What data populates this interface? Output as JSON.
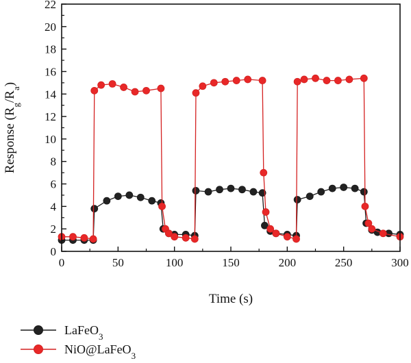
{
  "chart_data": {
    "type": "line",
    "xlabel": "Time (s)",
    "ylabel": {
      "main": "Response (R",
      "sub1": "g",
      "mid": "/R",
      "sub2": "a",
      "end": ")"
    },
    "xlim": [
      0,
      300
    ],
    "ylim": [
      0,
      22
    ],
    "x_ticks": [
      "0",
      "50",
      "100",
      "150",
      "200",
      "250",
      "300"
    ],
    "y_ticks": [
      "0",
      "2",
      "4",
      "6",
      "8",
      "10",
      "12",
      "14",
      "16",
      "18",
      "20",
      "22"
    ],
    "x_tick_values": [
      0,
      50,
      100,
      150,
      200,
      250,
      300
    ],
    "y_tick_values": [
      0,
      2,
      4,
      6,
      8,
      10,
      12,
      14,
      16,
      18,
      20,
      22
    ],
    "grid": false,
    "legend_position": "bottom-left",
    "series": [
      {
        "name": {
          "main": "LaFeO",
          "sub": "3"
        },
        "color": "#1a1a1a",
        "marker_fill": "#222222",
        "points": [
          [
            0,
            1.0
          ],
          [
            10,
            1.0
          ],
          [
            20,
            1.0
          ],
          [
            28,
            1.0
          ],
          [
            29,
            3.8
          ],
          [
            40,
            4.5
          ],
          [
            50,
            4.9
          ],
          [
            60,
            5.0
          ],
          [
            70,
            4.8
          ],
          [
            80,
            4.5
          ],
          [
            88,
            4.3
          ],
          [
            90,
            2.0
          ],
          [
            95,
            1.6
          ],
          [
            100,
            1.5
          ],
          [
            110,
            1.5
          ],
          [
            118,
            1.4
          ],
          [
            119,
            5.4
          ],
          [
            130,
            5.3
          ],
          [
            140,
            5.5
          ],
          [
            150,
            5.6
          ],
          [
            160,
            5.5
          ],
          [
            170,
            5.3
          ],
          [
            178,
            5.2
          ],
          [
            180,
            2.3
          ],
          [
            185,
            1.8
          ],
          [
            190,
            1.6
          ],
          [
            200,
            1.5
          ],
          [
            208,
            1.4
          ],
          [
            209,
            4.6
          ],
          [
            220,
            4.9
          ],
          [
            230,
            5.3
          ],
          [
            240,
            5.6
          ],
          [
            250,
            5.7
          ],
          [
            260,
            5.6
          ],
          [
            268,
            5.3
          ],
          [
            270,
            2.5
          ],
          [
            275,
            1.9
          ],
          [
            280,
            1.7
          ],
          [
            290,
            1.6
          ],
          [
            300,
            1.5
          ]
        ]
      },
      {
        "name": {
          "main": "NiO@LaFeO",
          "sub": "3"
        },
        "color": "#d42020",
        "marker_fill": "#e82828",
        "points": [
          [
            0,
            1.3
          ],
          [
            10,
            1.3
          ],
          [
            20,
            1.2
          ],
          [
            28,
            1.1
          ],
          [
            29,
            14.3
          ],
          [
            35,
            14.8
          ],
          [
            45,
            14.9
          ],
          [
            55,
            14.6
          ],
          [
            65,
            14.2
          ],
          [
            75,
            14.3
          ],
          [
            88,
            14.5
          ],
          [
            89,
            4.0
          ],
          [
            92,
            2.0
          ],
          [
            95,
            1.6
          ],
          [
            100,
            1.3
          ],
          [
            110,
            1.2
          ],
          [
            118,
            1.1
          ],
          [
            119,
            14.1
          ],
          [
            125,
            14.7
          ],
          [
            135,
            15.0
          ],
          [
            145,
            15.1
          ],
          [
            155,
            15.2
          ],
          [
            165,
            15.3
          ],
          [
            178,
            15.2
          ],
          [
            179,
            7.0
          ],
          [
            181,
            3.5
          ],
          [
            185,
            2.0
          ],
          [
            190,
            1.6
          ],
          [
            200,
            1.3
          ],
          [
            208,
            1.1
          ],
          [
            209,
            15.1
          ],
          [
            215,
            15.3
          ],
          [
            225,
            15.4
          ],
          [
            235,
            15.2
          ],
          [
            245,
            15.2
          ],
          [
            255,
            15.3
          ],
          [
            268,
            15.4
          ],
          [
            269,
            4.0
          ],
          [
            272,
            2.5
          ],
          [
            275,
            2.0
          ],
          [
            285,
            1.6
          ],
          [
            300,
            1.3
          ]
        ]
      }
    ]
  }
}
